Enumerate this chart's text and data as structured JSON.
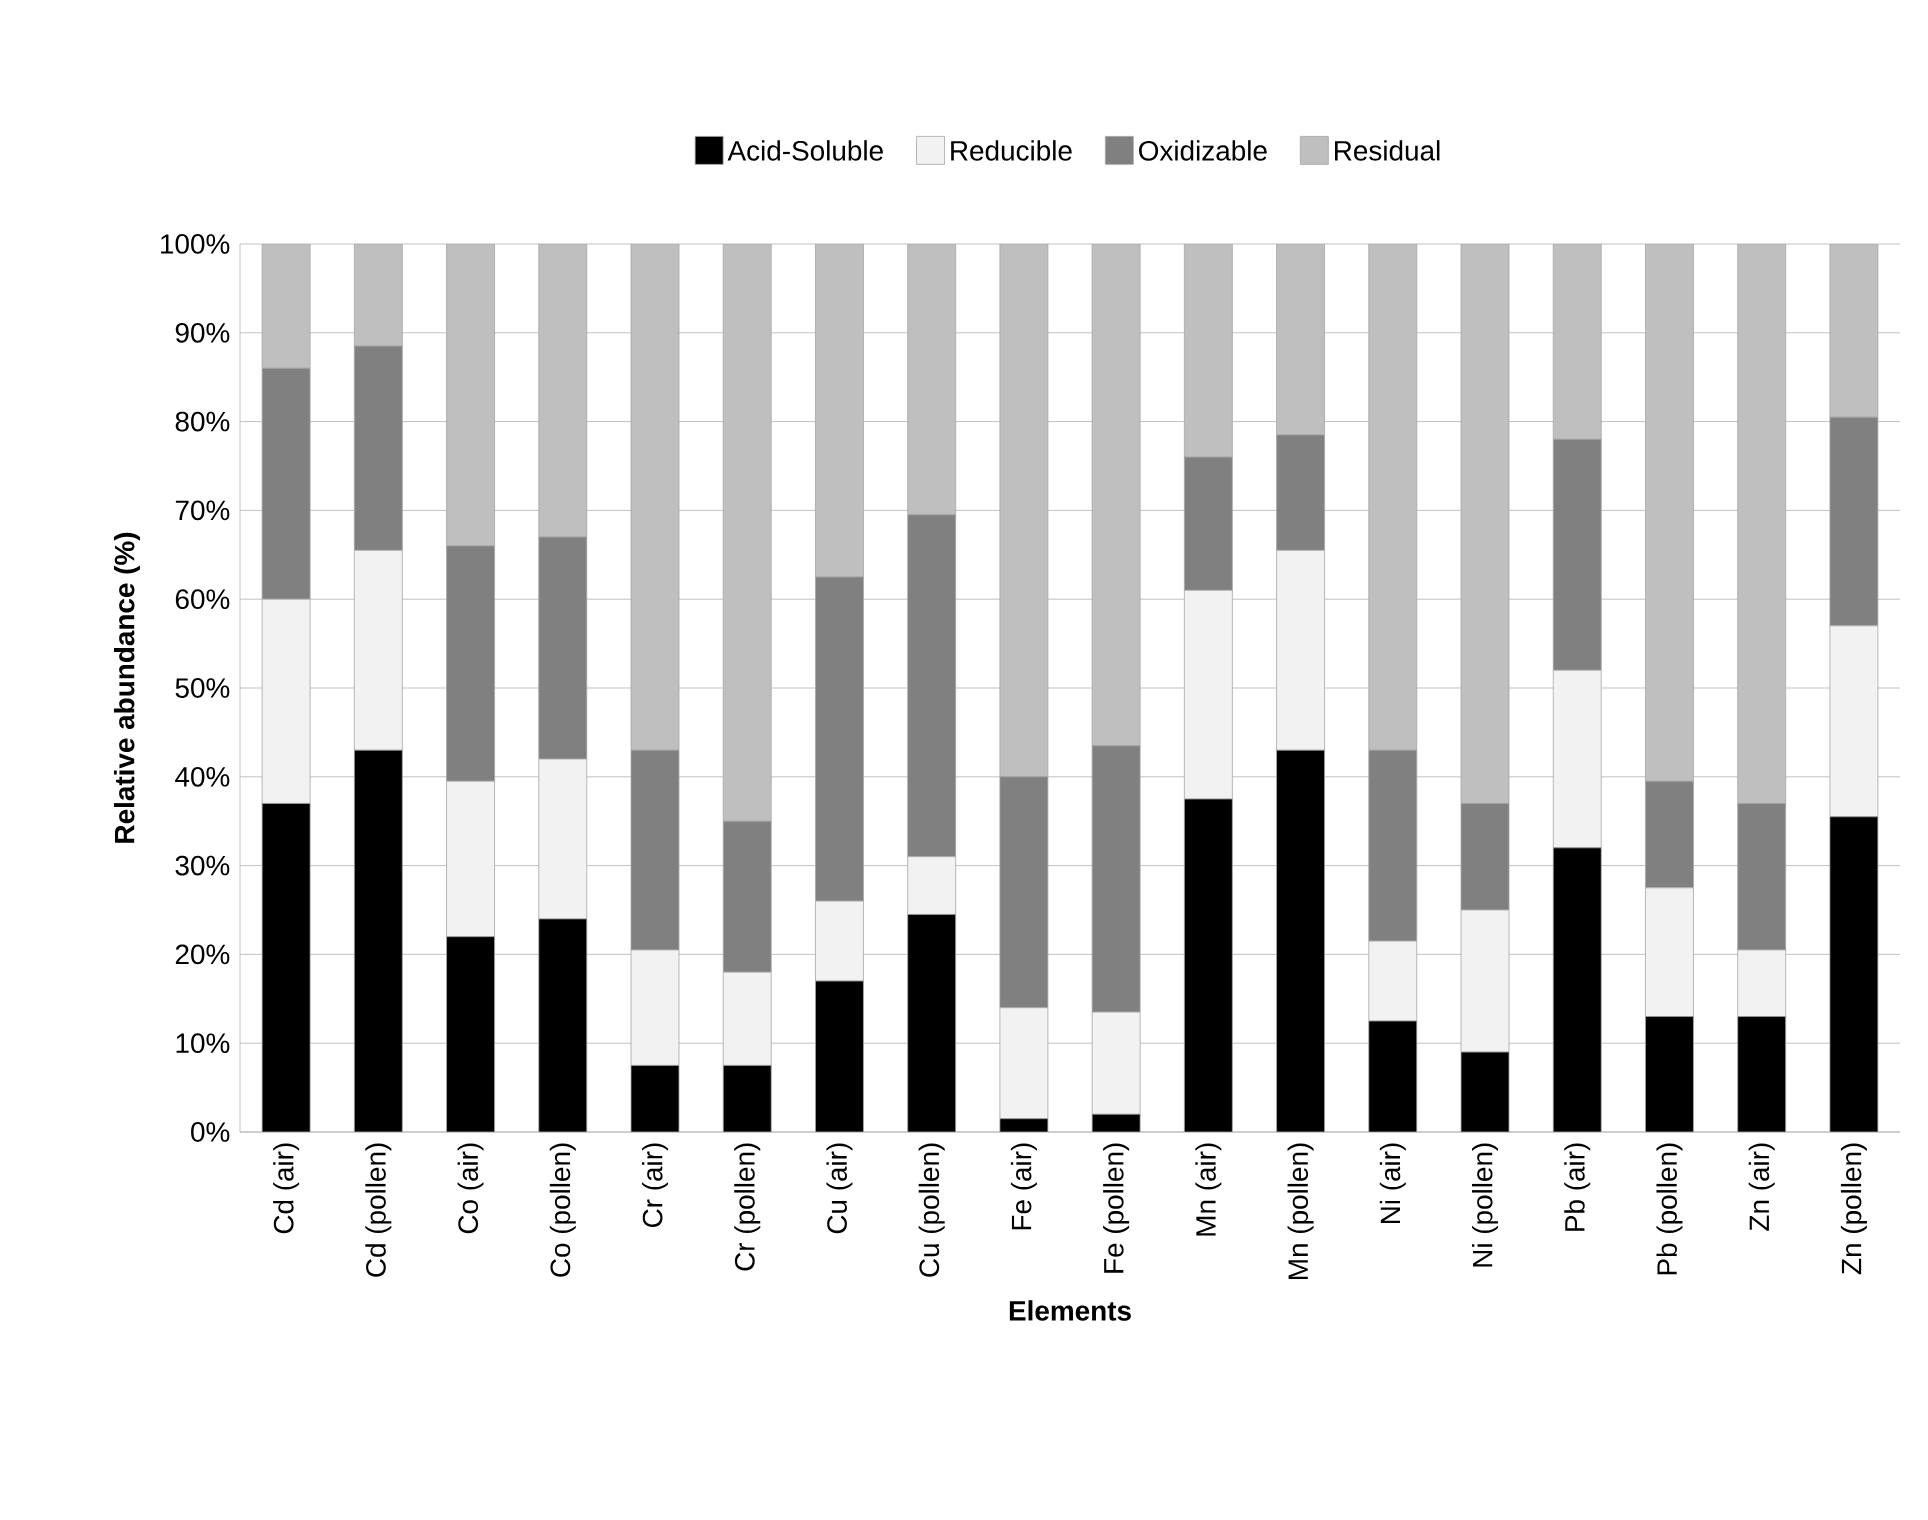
{
  "chart_data": {
    "type": "bar",
    "stacked": true,
    "xlabel": "Elements",
    "ylabel": "Relative abundance  (%)",
    "categories": [
      "Cd  (air)",
      "Cd  (pollen)",
      "Co (air)",
      "Co (pollen)",
      "Cr (air)",
      "Cr (pollen)",
      "Cu (air)",
      "Cu (pollen)",
      "Fe (air)",
      "Fe (pollen)",
      "Mn (air)",
      "Mn (pollen)",
      "Ni (air)",
      "Ni (pollen)",
      "Pb (air)",
      "Pb (pollen)",
      "Zn (air)",
      "Zn (pollen)"
    ],
    "series": [
      {
        "name": "Acid-Soluble",
        "color": "#000000",
        "values": [
          37,
          43,
          22,
          24,
          7.5,
          7.5,
          17,
          24.5,
          1.5,
          2,
          37.5,
          43,
          12.5,
          9,
          32,
          13,
          13,
          35.5
        ]
      },
      {
        "name": "Reducible",
        "color": "#f2f2f2",
        "values": [
          23,
          22.5,
          17.5,
          18,
          13,
          10.5,
          9,
          6.5,
          12.5,
          11.5,
          23.5,
          22.5,
          9,
          16,
          20,
          14.5,
          7.5,
          21.5
        ]
      },
      {
        "name": "Oxidizable",
        "color": "#808080",
        "values": [
          26,
          23,
          26.5,
          25,
          22.5,
          17,
          36.5,
          38.5,
          26,
          30,
          15,
          13,
          21.5,
          12,
          26,
          12,
          16.5,
          23.5
        ]
      },
      {
        "name": "Residual",
        "color": "#bfbfbf",
        "values": [
          14,
          11.5,
          34,
          33,
          57,
          65,
          37.5,
          30.5,
          60,
          56.5,
          24,
          21.5,
          57,
          63,
          22,
          60.5,
          63,
          19.5
        ]
      }
    ],
    "ylim": [
      0,
      100
    ],
    "yticks": [
      {
        "value": 0,
        "label": "0%"
      },
      {
        "value": 10,
        "label": "10%"
      },
      {
        "value": 20,
        "label": "20%"
      },
      {
        "value": 30,
        "label": "30%"
      },
      {
        "value": 40,
        "label": "40%"
      },
      {
        "value": 50,
        "label": "50%"
      },
      {
        "value": 60,
        "label": "60%"
      },
      {
        "value": 70,
        "label": "70%"
      },
      {
        "value": 80,
        "label": "80%"
      },
      {
        "value": 90,
        "label": "90%"
      },
      {
        "value": 100,
        "label": "100%"
      }
    ],
    "grid": "y",
    "legend": "top"
  }
}
